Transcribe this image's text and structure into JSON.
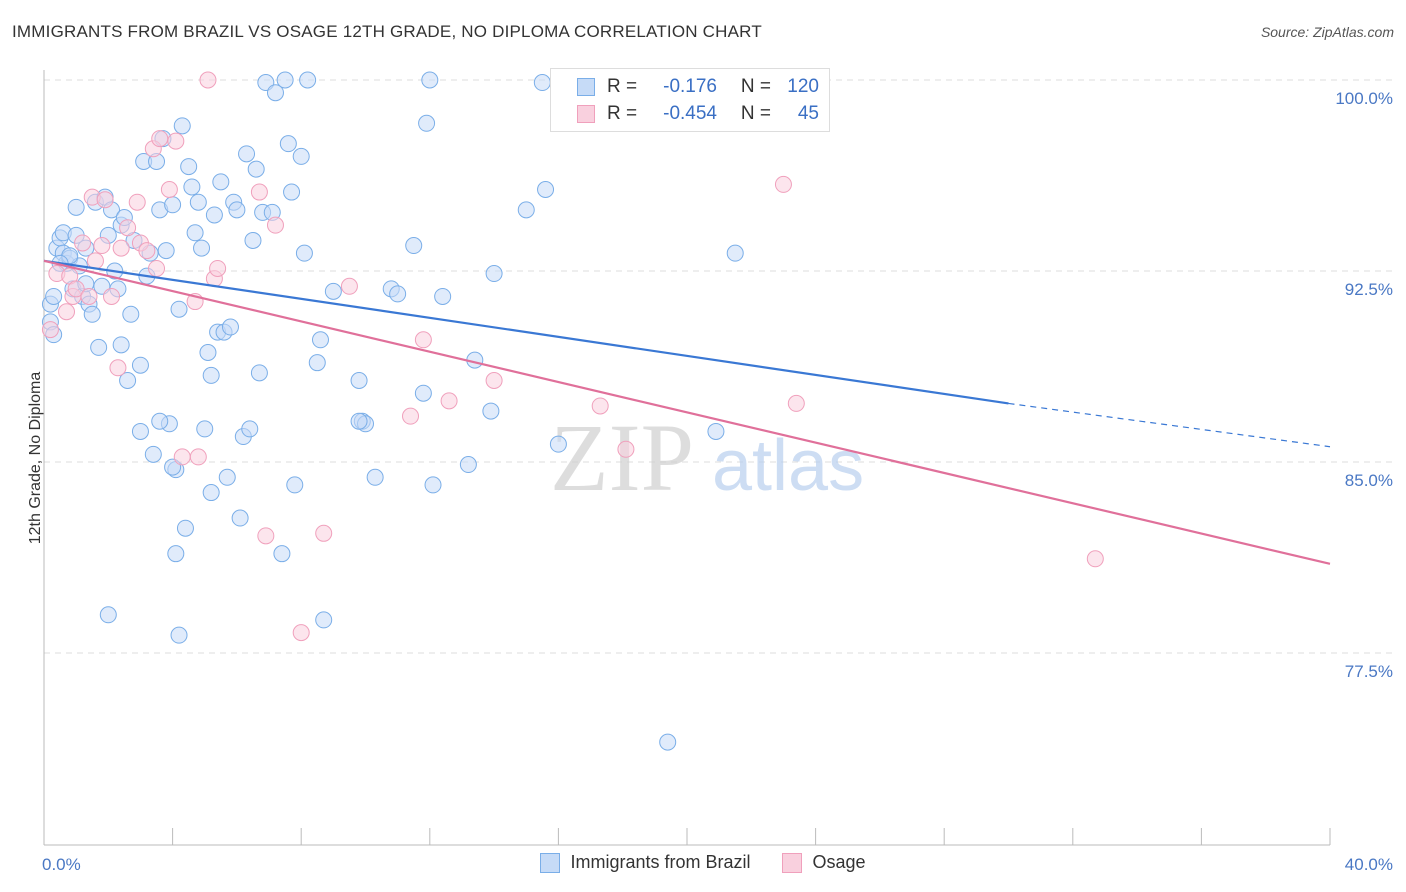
{
  "title": "IMMIGRANTS FROM BRAZIL VS OSAGE 12TH GRADE, NO DIPLOMA CORRELATION CHART",
  "source": "Source: ZipAtlas.com",
  "watermark": {
    "zip": "ZIP",
    "atlas": "atlas"
  },
  "legend": {
    "r_label": "R =",
    "n_label": "N =",
    "rows": [
      {
        "r": "-0.176",
        "n": "120",
        "color": "#7aaee8",
        "fill": "#c6dbf7"
      },
      {
        "r": "-0.454",
        "n": "45",
        "color": "#f0a0bc",
        "fill": "#f9d0de"
      }
    ]
  },
  "bottom_legend": [
    {
      "label": "Immigrants from Brazil",
      "color": "#7aaee8",
      "fill": "#c6dbf7"
    },
    {
      "label": "Osage",
      "color": "#f0a0bc",
      "fill": "#f9d0de"
    }
  ],
  "colors": {
    "blue_line": "#3a78d4",
    "pink_line": "#e0709a",
    "blue_point": "#7aaee8",
    "pink_point": "#f0a0bc",
    "grid": "#dddddd"
  },
  "chart_data": {
    "type": "scatter",
    "title": "IMMIGRANTS FROM BRAZIL VS OSAGE 12TH GRADE, NO DIPLOMA CORRELATION CHART",
    "xlabel": "",
    "ylabel": "12th Grade, No Diploma",
    "xlim": [
      0,
      40
    ],
    "ylim": [
      70.5,
      101
    ],
    "x_ticks": [
      "0.0%",
      "40.0%"
    ],
    "y_ticks": [
      {
        "value": 100.0,
        "label": "100.0%"
      },
      {
        "value": 92.5,
        "label": "92.5%"
      },
      {
        "value": 85.0,
        "label": "85.0%"
      },
      {
        "value": 77.5,
        "label": "77.5%"
      }
    ],
    "grid": true,
    "series": [
      {
        "name": "Immigrants from Brazil",
        "trend": {
          "x0": 0,
          "y0": 92.9,
          "x1": 30.0,
          "y1": 87.3,
          "dash_to_x": 40,
          "dash_to_y": 85.6
        },
        "points": [
          [
            0.2,
            91.2
          ],
          [
            0.2,
            90.5
          ],
          [
            0.3,
            90.0
          ],
          [
            0.4,
            93.4
          ],
          [
            0.5,
            93.8
          ],
          [
            0.6,
            93.2
          ],
          [
            0.6,
            94.0
          ],
          [
            0.7,
            92.8
          ],
          [
            0.8,
            93.0
          ],
          [
            0.9,
            91.8
          ],
          [
            1.0,
            95.0
          ],
          [
            1.0,
            93.9
          ],
          [
            1.1,
            92.7
          ],
          [
            1.2,
            91.5
          ],
          [
            1.3,
            93.4
          ],
          [
            1.4,
            91.2
          ],
          [
            1.5,
            90.8
          ],
          [
            1.6,
            95.2
          ],
          [
            1.7,
            89.5
          ],
          [
            1.8,
            91.9
          ],
          [
            1.9,
            95.4
          ],
          [
            2.0,
            93.9
          ],
          [
            2.1,
            94.9
          ],
          [
            2.2,
            92.5
          ],
          [
            2.3,
            91.8
          ],
          [
            2.4,
            94.3
          ],
          [
            2.5,
            94.6
          ],
          [
            2.6,
            88.2
          ],
          [
            2.7,
            90.8
          ],
          [
            2.8,
            93.7
          ],
          [
            3.0,
            86.2
          ],
          [
            3.1,
            96.8
          ],
          [
            3.2,
            92.3
          ],
          [
            3.3,
            93.2
          ],
          [
            3.4,
            85.3
          ],
          [
            3.5,
            96.8
          ],
          [
            3.6,
            94.9
          ],
          [
            3.7,
            97.7
          ],
          [
            3.8,
            93.3
          ],
          [
            3.9,
            86.5
          ],
          [
            4.0,
            95.1
          ],
          [
            4.1,
            84.7
          ],
          [
            4.2,
            91.0
          ],
          [
            4.3,
            98.2
          ],
          [
            4.4,
            82.4
          ],
          [
            4.5,
            96.6
          ],
          [
            4.6,
            95.8
          ],
          [
            4.7,
            94.0
          ],
          [
            4.8,
            95.2
          ],
          [
            4.9,
            93.4
          ],
          [
            5.0,
            86.3
          ],
          [
            5.1,
            89.3
          ],
          [
            5.2,
            88.4
          ],
          [
            5.3,
            94.7
          ],
          [
            5.4,
            90.1
          ],
          [
            5.5,
            96.0
          ],
          [
            5.6,
            90.1
          ],
          [
            5.7,
            84.4
          ],
          [
            5.8,
            90.3
          ],
          [
            5.9,
            95.2
          ],
          [
            6.0,
            94.9
          ],
          [
            6.2,
            86.0
          ],
          [
            6.3,
            97.1
          ],
          [
            6.4,
            86.3
          ],
          [
            6.5,
            93.7
          ],
          [
            6.6,
            96.5
          ],
          [
            6.7,
            88.5
          ],
          [
            6.8,
            94.8
          ],
          [
            6.9,
            99.9
          ],
          [
            7.1,
            94.8
          ],
          [
            7.2,
            99.5
          ],
          [
            7.5,
            100.0
          ],
          [
            7.6,
            97.5
          ],
          [
            7.7,
            95.6
          ],
          [
            7.8,
            84.1
          ],
          [
            8.0,
            97.0
          ],
          [
            8.1,
            93.2
          ],
          [
            8.2,
            100.0
          ],
          [
            8.5,
            88.9
          ],
          [
            8.6,
            89.8
          ],
          [
            8.7,
            78.8
          ],
          [
            9.0,
            91.7
          ],
          [
            9.8,
            88.2
          ],
          [
            9.9,
            86.6
          ],
          [
            10.0,
            86.5
          ],
          [
            10.3,
            84.4
          ],
          [
            10.8,
            91.8
          ],
          [
            11.0,
            91.6
          ],
          [
            11.5,
            93.5
          ],
          [
            11.8,
            87.7
          ],
          [
            11.9,
            98.3
          ],
          [
            12.0,
            100.0
          ],
          [
            12.1,
            84.1
          ],
          [
            12.4,
            91.5
          ],
          [
            13.2,
            84.9
          ],
          [
            13.4,
            89.0
          ],
          [
            13.9,
            87.0
          ],
          [
            14.0,
            92.4
          ],
          [
            15.0,
            94.9
          ],
          [
            15.5,
            99.9
          ],
          [
            15.6,
            95.7
          ],
          [
            16.0,
            85.7
          ],
          [
            20.9,
            86.2
          ],
          [
            21.5,
            93.2
          ],
          [
            2.0,
            79.0
          ],
          [
            4.1,
            81.4
          ],
          [
            4.2,
            78.2
          ],
          [
            7.4,
            81.4
          ],
          [
            6.1,
            82.8
          ],
          [
            5.2,
            83.8
          ],
          [
            4.0,
            84.8
          ],
          [
            3.6,
            86.6
          ],
          [
            19.4,
            74.0
          ],
          [
            9.8,
            86.6
          ],
          [
            3.0,
            88.8
          ],
          [
            2.4,
            89.6
          ],
          [
            1.3,
            92.0
          ],
          [
            0.8,
            93.1
          ],
          [
            0.5,
            92.8
          ],
          [
            0.3,
            91.5
          ]
        ]
      },
      {
        "name": "Osage",
        "trend": {
          "x0": 0,
          "y0": 92.9,
          "x1": 40,
          "y1": 81.0
        },
        "points": [
          [
            0.2,
            90.2
          ],
          [
            0.4,
            92.4
          ],
          [
            0.8,
            92.3
          ],
          [
            0.9,
            91.5
          ],
          [
            1.0,
            91.8
          ],
          [
            1.4,
            91.5
          ],
          [
            1.5,
            95.4
          ],
          [
            1.6,
            92.9
          ],
          [
            1.8,
            93.5
          ],
          [
            1.9,
            95.3
          ],
          [
            2.1,
            91.5
          ],
          [
            2.3,
            88.7
          ],
          [
            2.4,
            93.4
          ],
          [
            2.6,
            94.2
          ],
          [
            2.9,
            95.2
          ],
          [
            3.0,
            93.6
          ],
          [
            3.2,
            93.3
          ],
          [
            3.4,
            97.3
          ],
          [
            3.5,
            92.6
          ],
          [
            3.6,
            97.7
          ],
          [
            3.9,
            95.7
          ],
          [
            4.1,
            97.6
          ],
          [
            4.3,
            85.2
          ],
          [
            4.7,
            91.3
          ],
          [
            4.8,
            85.2
          ],
          [
            5.1,
            100.0
          ],
          [
            5.3,
            92.2
          ],
          [
            5.4,
            92.6
          ],
          [
            6.7,
            95.6
          ],
          [
            6.9,
            82.1
          ],
          [
            7.2,
            94.3
          ],
          [
            8.0,
            78.3
          ],
          [
            8.7,
            82.2
          ],
          [
            9.5,
            91.9
          ],
          [
            11.4,
            86.8
          ],
          [
            11.8,
            89.8
          ],
          [
            12.6,
            87.4
          ],
          [
            14.0,
            88.2
          ],
          [
            17.3,
            87.2
          ],
          [
            18.1,
            85.5
          ],
          [
            23.4,
            87.3
          ],
          [
            23.0,
            95.9
          ],
          [
            32.7,
            81.2
          ],
          [
            0.7,
            90.9
          ],
          [
            1.2,
            93.6
          ]
        ]
      }
    ]
  }
}
